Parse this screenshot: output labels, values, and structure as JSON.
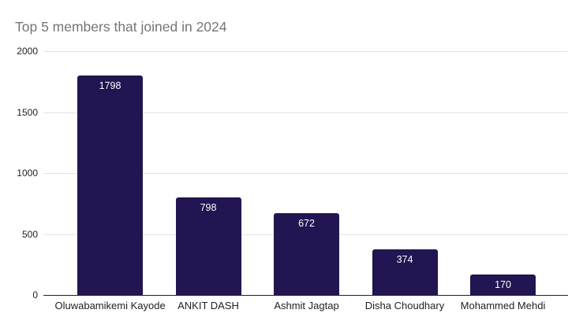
{
  "chart_data": {
    "type": "bar",
    "title": "Top 5 members that joined in 2024",
    "categories": [
      "Oluwabamikemi Kayode",
      "ANKIT DASH",
      "Ashmit Jagtap",
      "Disha Choudhary",
      "Mohammed Mehdi"
    ],
    "values": [
      1798,
      798,
      672,
      374,
      170
    ],
    "value_labels": [
      "1798",
      "798",
      "672",
      "374",
      "170"
    ],
    "xlabel": "",
    "ylabel": "",
    "ylim": [
      0,
      2000
    ],
    "yticks": [
      "0",
      "500",
      "1000",
      "1500",
      "2000"
    ],
    "grid": true,
    "legend": "none",
    "value_label_position": "inside-top"
  },
  "colors": {
    "background": "#ffffff",
    "bar_fill": "#221551",
    "title_text": "#757575",
    "axis_text": "#212121",
    "gridline": "#e3e3e3",
    "baseline": "#212121",
    "value_label_text": "#ffffff"
  }
}
